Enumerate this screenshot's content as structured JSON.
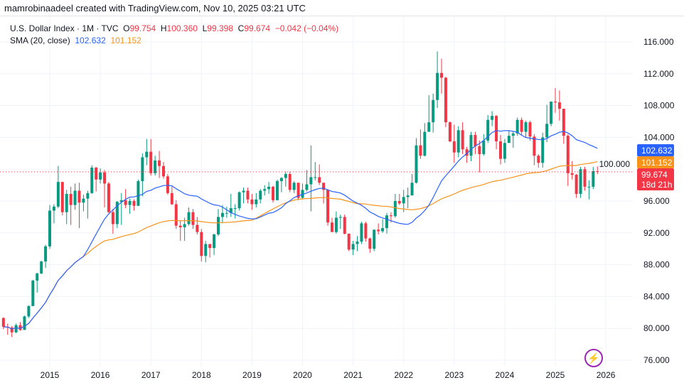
{
  "attribution": "mamrobinaadeel created with TradingView.com, Nov 10, 2025 03:21 UTC",
  "legend": {
    "symbol": "U.S. Dollar Index · 1M · TVC",
    "o_label": "O",
    "o": "99.754",
    "h_label": "H",
    "h": "100.360",
    "l_label": "L",
    "l": "99.398",
    "c_label": "C",
    "c": "99.674",
    "change": "−0.042 (−0.04%)",
    "sma_label": "SMA (20, close)",
    "sma_value_1": "102.632",
    "sma_value_2": "101.152"
  },
  "price_tags": {
    "sma_blue": "102.632",
    "sma_orange": "101.152",
    "last": "99.674",
    "countdown": "18d 21h"
  },
  "colors": {
    "up": "#089981",
    "down": "#f23645",
    "sma_fast": "#2962ff",
    "sma_slow": "#f7931a",
    "last_tag": "#f23645"
  },
  "icons": {
    "bottom_right": "lightning-icon"
  },
  "chart_data": {
    "type": "candlestick",
    "interval": "1M",
    "start": "2014-02",
    "first_open": 81.3,
    "ylim": [
      76,
      116
    ],
    "y_ticks": [
      "116.000",
      "112.000",
      "108.000",
      "104.000",
      "100.000",
      "96.000",
      "92.000",
      "88.000",
      "84.000",
      "80.000",
      "76.000"
    ],
    "x_ticks": [
      "2015",
      "2016",
      "2017",
      "2018",
      "2019",
      "2020",
      "2021",
      "2022",
      "2023",
      "2024",
      "2025",
      "2026"
    ],
    "grid": true,
    "years": [
      {
        "year": 2014,
        "close": [
          80.2,
          80.1,
          79.5,
          80.4,
          79.8,
          81.5,
          82.8,
          86.0,
          86.9,
          88.4,
          90.3
        ],
        "high": [
          81.4,
          80.6,
          80.3,
          80.6,
          80.8,
          81.6,
          82.9,
          86.1,
          87.0,
          88.5,
          90.5
        ],
        "low": [
          79.9,
          79.2,
          78.9,
          79.4,
          79.7,
          80.3,
          81.3,
          82.8,
          84.5,
          86.8,
          87.6
        ]
      },
      {
        "year": 2015,
        "close": [
          94.8,
          95.3,
          98.4,
          94.6,
          96.9,
          95.5,
          97.3,
          95.8,
          96.3,
          97.0,
          100.2,
          98.7
        ],
        "high": [
          95.5,
          95.6,
          100.4,
          98.4,
          97.4,
          97.8,
          98.2,
          98.3,
          96.8,
          97.3,
          100.5,
          100.3
        ],
        "low": [
          90.0,
          93.2,
          95.1,
          94.2,
          93.1,
          93.0,
          94.9,
          92.6,
          94.7,
          93.8,
          96.9,
          97.2
        ]
      },
      {
        "year": 2016,
        "close": [
          99.6,
          98.2,
          94.6,
          93.1,
          95.9,
          96.1,
          95.5,
          96.0,
          95.4,
          98.5,
          101.5,
          102.2
        ],
        "high": [
          100.1,
          99.9,
          98.4,
          95.0,
          96.0,
          97.0,
          97.5,
          96.3,
          96.2,
          98.7,
          102.0,
          103.8
        ],
        "low": [
          98.2,
          95.2,
          94.5,
          91.9,
          92.6,
          93.0,
          95.1,
          94.4,
          94.8,
          95.4,
          96.6,
          100.5
        ]
      },
      {
        "year": 2017,
        "close": [
          99.5,
          101.1,
          100.4,
          99.1,
          97.0,
          95.6,
          92.9,
          92.7,
          93.1,
          94.6,
          93.0,
          92.1
        ],
        "high": [
          103.8,
          101.7,
          102.3,
          100.9,
          99.4,
          97.8,
          96.1,
          93.6,
          93.9,
          95.2,
          95.0,
          94.0
        ],
        "low": [
          99.2,
          99.2,
          98.9,
          98.8,
          96.8,
          95.5,
          92.5,
          91.0,
          91.0,
          92.9,
          92.5,
          91.8
        ]
      },
      {
        "year": 2018,
        "close": [
          89.1,
          90.6,
          90.1,
          91.8,
          94.0,
          94.5,
          94.5,
          95.1,
          95.1,
          97.1,
          97.3,
          96.2
        ],
        "high": [
          92.5,
          91.0,
          90.6,
          91.9,
          95.0,
          95.5,
          95.3,
          96.9,
          95.6,
          97.2,
          97.7,
          97.7
        ],
        "low": [
          88.4,
          88.3,
          88.9,
          89.2,
          91.6,
          93.2,
          93.9,
          94.0,
          93.8,
          94.8,
          95.7,
          95.7
        ]
      },
      {
        "year": 2019,
        "close": [
          95.6,
          96.2,
          97.3,
          97.5,
          97.8,
          96.1,
          98.5,
          98.9,
          99.4,
          97.4,
          98.3,
          96.4
        ],
        "high": [
          96.9,
          97.0,
          97.5,
          98.0,
          98.4,
          97.9,
          98.7,
          99.0,
          99.7,
          99.7,
          98.5,
          98.3
        ],
        "low": [
          94.9,
          95.2,
          95.7,
          96.7,
          96.9,
          95.8,
          96.1,
          97.1,
          97.8,
          97.1,
          97.0,
          96.1
        ]
      },
      {
        "year": 2020,
        "close": [
          97.4,
          98.1,
          99.0,
          99.0,
          98.3,
          97.4,
          93.3,
          92.1,
          93.9,
          94.0,
          91.9,
          89.9
        ],
        "high": [
          98.2,
          99.9,
          103.0,
          100.9,
          100.6,
          97.8,
          97.5,
          93.9,
          94.7,
          94.3,
          94.3,
          91.9
        ],
        "low": [
          96.2,
          97.2,
          94.7,
          98.6,
          98.0,
          95.7,
          92.9,
          92.2,
          91.9,
          92.5,
          91.8,
          89.7
        ]
      },
      {
        "year": 2021,
        "close": [
          90.6,
          90.9,
          93.2,
          91.3,
          90.0,
          92.4,
          92.2,
          92.6,
          94.2,
          94.1,
          96.0,
          95.7
        ],
        "high": [
          91.0,
          91.6,
          93.4,
          93.4,
          91.4,
          92.4,
          93.2,
          93.7,
          94.5,
          94.6,
          96.9,
          96.9
        ],
        "low": [
          89.2,
          89.7,
          90.6,
          90.9,
          89.5,
          89.7,
          91.8,
          92.0,
          91.9,
          93.3,
          93.9,
          95.5
        ]
      },
      {
        "year": 2022,
        "close": [
          96.5,
          96.7,
          98.3,
          103.0,
          101.7,
          104.7,
          105.9,
          108.7,
          112.1,
          111.5,
          105.9,
          103.5
        ],
        "high": [
          97.4,
          97.7,
          99.4,
          103.9,
          105.0,
          105.8,
          109.3,
          109.5,
          114.8,
          113.9,
          111.6,
          106.0
        ],
        "low": [
          94.6,
          95.1,
          97.7,
          98.2,
          101.3,
          101.6,
          104.7,
          104.6,
          107.7,
          109.5,
          105.3,
          103.4
        ]
      },
      {
        "year": 2023,
        "close": [
          102.1,
          104.9,
          102.5,
          101.7,
          104.3,
          102.9,
          101.9,
          103.6,
          106.2,
          106.7,
          103.5,
          101.3
        ],
        "high": [
          105.6,
          105.4,
          105.9,
          102.8,
          104.7,
          104.7,
          103.6,
          104.4,
          106.8,
          107.3,
          106.8,
          104.3
        ],
        "low": [
          100.8,
          101.5,
          101.9,
          100.8,
          101.0,
          101.9,
          99.6,
          101.7,
          103.3,
          105.4,
          102.5,
          100.6
        ]
      },
      {
        "year": 2024,
        "close": [
          103.3,
          104.2,
          104.5,
          106.2,
          104.7,
          105.9,
          104.1,
          101.7,
          100.8,
          104.0,
          105.7,
          108.5
        ],
        "high": [
          103.8,
          104.9,
          104.8,
          106.5,
          106.5,
          106.1,
          106.1,
          104.4,
          101.9,
          104.6,
          108.1,
          108.5
        ],
        "low": [
          100.8,
          103.4,
          102.7,
          104.2,
          104.3,
          104.0,
          103.6,
          100.5,
          100.2,
          100.2,
          103.4,
          105.4
        ]
      },
      {
        "year": 2025,
        "close": [
          108.4,
          107.6,
          104.2,
          99.5,
          99.3,
          96.9,
          100.0,
          97.8,
          97.8,
          99.754,
          99.674
        ],
        "high": [
          110.2,
          109.9,
          107.6,
          104.4,
          101.0,
          99.4,
          100.3,
          100.3,
          98.6,
          100.3,
          100.36
        ],
        "low": [
          107.1,
          106.1,
          103.2,
          97.9,
          98.7,
          96.4,
          96.4,
          97.3,
          96.2,
          97.5,
          99.398
        ]
      }
    ]
  }
}
